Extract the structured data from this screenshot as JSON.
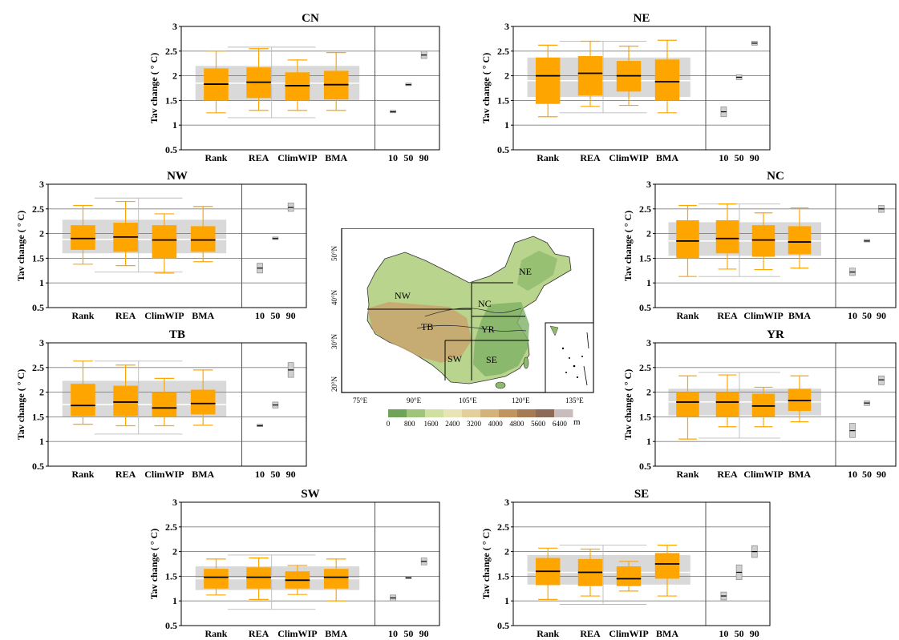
{
  "colors": {
    "box_fill": "#ffa500",
    "median": "#000000",
    "envelope": "#d9d9d9",
    "grid": "#7f7f7f",
    "range_box": "#d0d0d0",
    "whisker": "#ffa500"
  },
  "chart_data": [
    {
      "type": "box",
      "title": "CN",
      "ylabel": "Tav change ( ° C)",
      "ylim": [
        0.5,
        3
      ],
      "yticks": [
        "0.5",
        "1",
        "1.5",
        "2",
        "2.5",
        "3"
      ],
      "categories": [
        "Rank",
        "REA",
        "ClimWIP",
        "BMA"
      ],
      "percentile_labels": [
        "10",
        "50",
        "90"
      ],
      "boxes": [
        {
          "whislo": 1.25,
          "q1": 1.5,
          "med": 1.83,
          "q3": 2.15,
          "whishi": 2.5
        },
        {
          "whislo": 1.3,
          "q1": 1.55,
          "med": 1.87,
          "q3": 2.17,
          "whishi": 2.55
        },
        {
          "whislo": 1.3,
          "q1": 1.5,
          "med": 1.8,
          "q3": 2.07,
          "whishi": 2.32
        },
        {
          "whislo": 1.3,
          "q1": 1.52,
          "med": 1.82,
          "q3": 2.1,
          "whishi": 2.47
        }
      ],
      "envelope": {
        "low": 1.5,
        "high": 2.2,
        "median": 1.85
      },
      "ensemble_range": {
        "min": 1.15,
        "max": 2.58
      },
      "percentiles": [
        {
          "low": 1.25,
          "high": 1.3,
          "mid": 1.27
        },
        {
          "low": 1.8,
          "high": 1.85,
          "mid": 1.82
        },
        {
          "low": 2.35,
          "high": 2.5,
          "mid": 2.42
        }
      ]
    },
    {
      "type": "box",
      "title": "NE",
      "ylabel": "Tav change ( ° C)",
      "ylim": [
        0.5,
        3
      ],
      "yticks": [
        "0.5",
        "1",
        "1.5",
        "2",
        "2.5",
        "3"
      ],
      "categories": [
        "Rank",
        "REA",
        "ClimWIP",
        "BMA"
      ],
      "percentile_labels": [
        "10",
        "50",
        "90"
      ],
      "boxes": [
        {
          "whislo": 1.17,
          "q1": 1.43,
          "med": 2.0,
          "q3": 2.37,
          "whishi": 2.62
        },
        {
          "whislo": 1.38,
          "q1": 1.6,
          "med": 2.05,
          "q3": 2.4,
          "whishi": 2.7
        },
        {
          "whislo": 1.4,
          "q1": 1.68,
          "med": 2.0,
          "q3": 2.3,
          "whishi": 2.6
        },
        {
          "whislo": 1.25,
          "q1": 1.5,
          "med": 1.88,
          "q3": 2.33,
          "whishi": 2.72
        }
      ],
      "envelope": {
        "low": 1.57,
        "high": 2.37,
        "median": 1.9
      },
      "ensemble_range": {
        "min": 1.25,
        "max": 2.7
      },
      "percentiles": [
        {
          "low": 1.17,
          "high": 1.37,
          "mid": 1.27
        },
        {
          "low": 1.92,
          "high": 2.02,
          "mid": 1.97
        },
        {
          "low": 2.62,
          "high": 2.7,
          "mid": 2.66
        }
      ]
    },
    {
      "type": "box",
      "title": "NW",
      "ylabel": "Tav change ( ° C)",
      "ylim": [
        0.5,
        3
      ],
      "yticks": [
        "0.5",
        "1",
        "1.5",
        "2",
        "2.5",
        "3"
      ],
      "categories": [
        "Rank",
        "REA",
        "ClimWIP",
        "BMA"
      ],
      "percentile_labels": [
        "10",
        "50",
        "90"
      ],
      "boxes": [
        {
          "whislo": 1.38,
          "q1": 1.67,
          "med": 1.9,
          "q3": 2.17,
          "whishi": 2.57
        },
        {
          "whislo": 1.35,
          "q1": 1.63,
          "med": 1.93,
          "q3": 2.22,
          "whishi": 2.65
        },
        {
          "whislo": 1.2,
          "q1": 1.5,
          "med": 1.87,
          "q3": 2.17,
          "whishi": 2.4
        },
        {
          "whislo": 1.43,
          "q1": 1.63,
          "med": 1.87,
          "q3": 2.15,
          "whishi": 2.55
        }
      ],
      "envelope": {
        "low": 1.6,
        "high": 2.28,
        "median": 1.88
      },
      "ensemble_range": {
        "min": 1.22,
        "max": 2.72
      },
      "percentiles": [
        {
          "low": 1.2,
          "high": 1.4,
          "mid": 1.3
        },
        {
          "low": 1.88,
          "high": 1.93,
          "mid": 1.9
        },
        {
          "low": 2.45,
          "high": 2.62,
          "mid": 2.53
        }
      ]
    },
    {
      "type": "box",
      "title": "NC",
      "ylabel": "Tav change ( ° C)",
      "ylim": [
        0.5,
        3
      ],
      "yticks": [
        "0.5",
        "1",
        "1.5",
        "2",
        "2.5",
        "3"
      ],
      "categories": [
        "Rank",
        "REA",
        "ClimWIP",
        "BMA"
      ],
      "percentile_labels": [
        "10",
        "50",
        "90"
      ],
      "boxes": [
        {
          "whislo": 1.13,
          "q1": 1.5,
          "med": 1.85,
          "q3": 2.27,
          "whishi": 2.57
        },
        {
          "whislo": 1.28,
          "q1": 1.6,
          "med": 1.9,
          "q3": 2.27,
          "whishi": 2.6
        },
        {
          "whislo": 1.27,
          "q1": 1.53,
          "med": 1.87,
          "q3": 2.17,
          "whishi": 2.42
        },
        {
          "whislo": 1.3,
          "q1": 1.58,
          "med": 1.83,
          "q3": 2.15,
          "whishi": 2.52
        }
      ],
      "envelope": {
        "low": 1.55,
        "high": 2.23,
        "median": 1.85
      },
      "ensemble_range": {
        "min": 1.13,
        "max": 2.6
      },
      "percentiles": [
        {
          "low": 1.15,
          "high": 1.3,
          "mid": 1.22
        },
        {
          "low": 1.83,
          "high": 1.88,
          "mid": 1.85
        },
        {
          "low": 2.43,
          "high": 2.57,
          "mid": 2.5
        }
      ]
    },
    {
      "type": "box",
      "title": "TB",
      "ylabel": "Tav change ( ° C)",
      "ylim": [
        0.5,
        3
      ],
      "yticks": [
        "0.5",
        "1",
        "1.5",
        "2",
        "2.5",
        "3"
      ],
      "categories": [
        "Rank",
        "REA",
        "ClimWIP",
        "BMA"
      ],
      "percentile_labels": [
        "10",
        "50",
        "90"
      ],
      "boxes": [
        {
          "whislo": 1.35,
          "q1": 1.52,
          "med": 1.73,
          "q3": 2.17,
          "whishi": 2.63
        },
        {
          "whislo": 1.32,
          "q1": 1.52,
          "med": 1.8,
          "q3": 2.13,
          "whishi": 2.55
        },
        {
          "whislo": 1.32,
          "q1": 1.5,
          "med": 1.68,
          "q3": 2.0,
          "whishi": 2.28
        },
        {
          "whislo": 1.33,
          "q1": 1.55,
          "med": 1.77,
          "q3": 2.05,
          "whishi": 2.45
        }
      ],
      "envelope": {
        "low": 1.5,
        "high": 2.23,
        "median": 1.75
      },
      "ensemble_range": {
        "min": 1.15,
        "max": 2.63
      },
      "percentiles": [
        {
          "low": 1.3,
          "high": 1.35,
          "mid": 1.32
        },
        {
          "low": 1.68,
          "high": 1.8,
          "mid": 1.74
        },
        {
          "low": 2.3,
          "high": 2.6,
          "mid": 2.45
        }
      ]
    },
    {
      "type": "box",
      "title": "YR",
      "ylabel": "Tav change ( ° C)",
      "ylim": [
        0.5,
        3
      ],
      "yticks": [
        "0.5",
        "1",
        "1.5",
        "2",
        "2.5",
        "3"
      ],
      "categories": [
        "Rank",
        "REA",
        "ClimWIP",
        "BMA"
      ],
      "percentile_labels": [
        "10",
        "50",
        "90"
      ],
      "boxes": [
        {
          "whislo": 1.05,
          "q1": 1.5,
          "med": 1.8,
          "q3": 2.0,
          "whishi": 2.33
        },
        {
          "whislo": 1.3,
          "q1": 1.5,
          "med": 1.8,
          "q3": 2.0,
          "whishi": 2.35
        },
        {
          "whislo": 1.3,
          "q1": 1.5,
          "med": 1.72,
          "q3": 1.97,
          "whishi": 2.1
        },
        {
          "whislo": 1.4,
          "q1": 1.62,
          "med": 1.83,
          "q3": 2.07,
          "whishi": 2.33
        }
      ],
      "envelope": {
        "low": 1.53,
        "high": 2.07,
        "median": 1.8
      },
      "ensemble_range": {
        "min": 1.07,
        "max": 2.4
      },
      "percentiles": [
        {
          "low": 1.08,
          "high": 1.37,
          "mid": 1.22
        },
        {
          "low": 1.73,
          "high": 1.82,
          "mid": 1.78
        },
        {
          "low": 2.15,
          "high": 2.33,
          "mid": 2.25
        }
      ]
    },
    {
      "type": "box",
      "title": "SW",
      "ylabel": "Tav change ( ° C)",
      "ylim": [
        0.5,
        3
      ],
      "yticks": [
        "0.5",
        "1",
        "1.5",
        "2",
        "2.5",
        "3"
      ],
      "categories": [
        "Rank",
        "REA",
        "ClimWIP",
        "BMA"
      ],
      "percentile_labels": [
        "10",
        "50",
        "90"
      ],
      "boxes": [
        {
          "whislo": 1.12,
          "q1": 1.25,
          "med": 1.48,
          "q3": 1.65,
          "whishi": 1.85
        },
        {
          "whislo": 1.03,
          "q1": 1.25,
          "med": 1.48,
          "q3": 1.68,
          "whishi": 1.87
        },
        {
          "whislo": 1.13,
          "q1": 1.25,
          "med": 1.42,
          "q3": 1.6,
          "whishi": 1.72
        },
        {
          "whislo": 1.0,
          "q1": 1.25,
          "med": 1.48,
          "q3": 1.65,
          "whishi": 1.85
        }
      ],
      "envelope": {
        "low": 1.22,
        "high": 1.7,
        "median": 1.45
      },
      "ensemble_range": {
        "min": 0.83,
        "max": 1.93
      },
      "percentiles": [
        {
          "low": 1.0,
          "high": 1.12,
          "mid": 1.06
        },
        {
          "low": 1.45,
          "high": 1.5,
          "mid": 1.47
        },
        {
          "low": 1.73,
          "high": 1.87,
          "mid": 1.8
        }
      ]
    },
    {
      "type": "box",
      "title": "SE",
      "ylabel": "Tav change ( ° C)",
      "ylim": [
        0.5,
        3
      ],
      "yticks": [
        "0.5",
        "1",
        "1.5",
        "2",
        "2.5",
        "3"
      ],
      "categories": [
        "Rank",
        "REA",
        "ClimWIP",
        "BMA"
      ],
      "percentile_labels": [
        "10",
        "50",
        "90"
      ],
      "boxes": [
        {
          "whislo": 1.03,
          "q1": 1.32,
          "med": 1.6,
          "q3": 1.87,
          "whishi": 2.07
        },
        {
          "whislo": 1.1,
          "q1": 1.3,
          "med": 1.58,
          "q3": 1.85,
          "whishi": 2.05
        },
        {
          "whislo": 1.2,
          "q1": 1.3,
          "med": 1.45,
          "q3": 1.7,
          "whishi": 1.8
        },
        {
          "whislo": 1.1,
          "q1": 1.45,
          "med": 1.75,
          "q3": 1.97,
          "whishi": 2.13
        }
      ],
      "envelope": {
        "low": 1.33,
        "high": 1.93,
        "median": 1.58
      },
      "ensemble_range": {
        "min": 0.93,
        "max": 2.13
      },
      "percentiles": [
        {
          "low": 1.02,
          "high": 1.18,
          "mid": 1.1
        },
        {
          "low": 1.43,
          "high": 1.73,
          "mid": 1.58
        },
        {
          "low": 1.88,
          "high": 2.12,
          "mid": 2.0
        }
      ]
    }
  ],
  "map": {
    "region_labels": [
      "NE",
      "NW",
      "NC",
      "TB",
      "YR",
      "SW",
      "SE"
    ],
    "lat_labels": [
      "50°N",
      "40°N",
      "30°N",
      "20°N"
    ],
    "lon_labels": [
      "75°E",
      "90°E",
      "105°E",
      "120°E",
      "135°E"
    ],
    "colorbar_ticks": [
      "0",
      "800",
      "1600",
      "2400",
      "3200",
      "4000",
      "4800",
      "5600",
      "6400"
    ],
    "colorbar_unit": "m",
    "colorbar_colors": [
      "#6fa35a",
      "#9fc47a",
      "#cfe0a0",
      "#e8e4b6",
      "#e2cf9b",
      "#d4b27c",
      "#bf945f",
      "#a57b55",
      "#8c6a57",
      "#c8bcbc"
    ]
  }
}
